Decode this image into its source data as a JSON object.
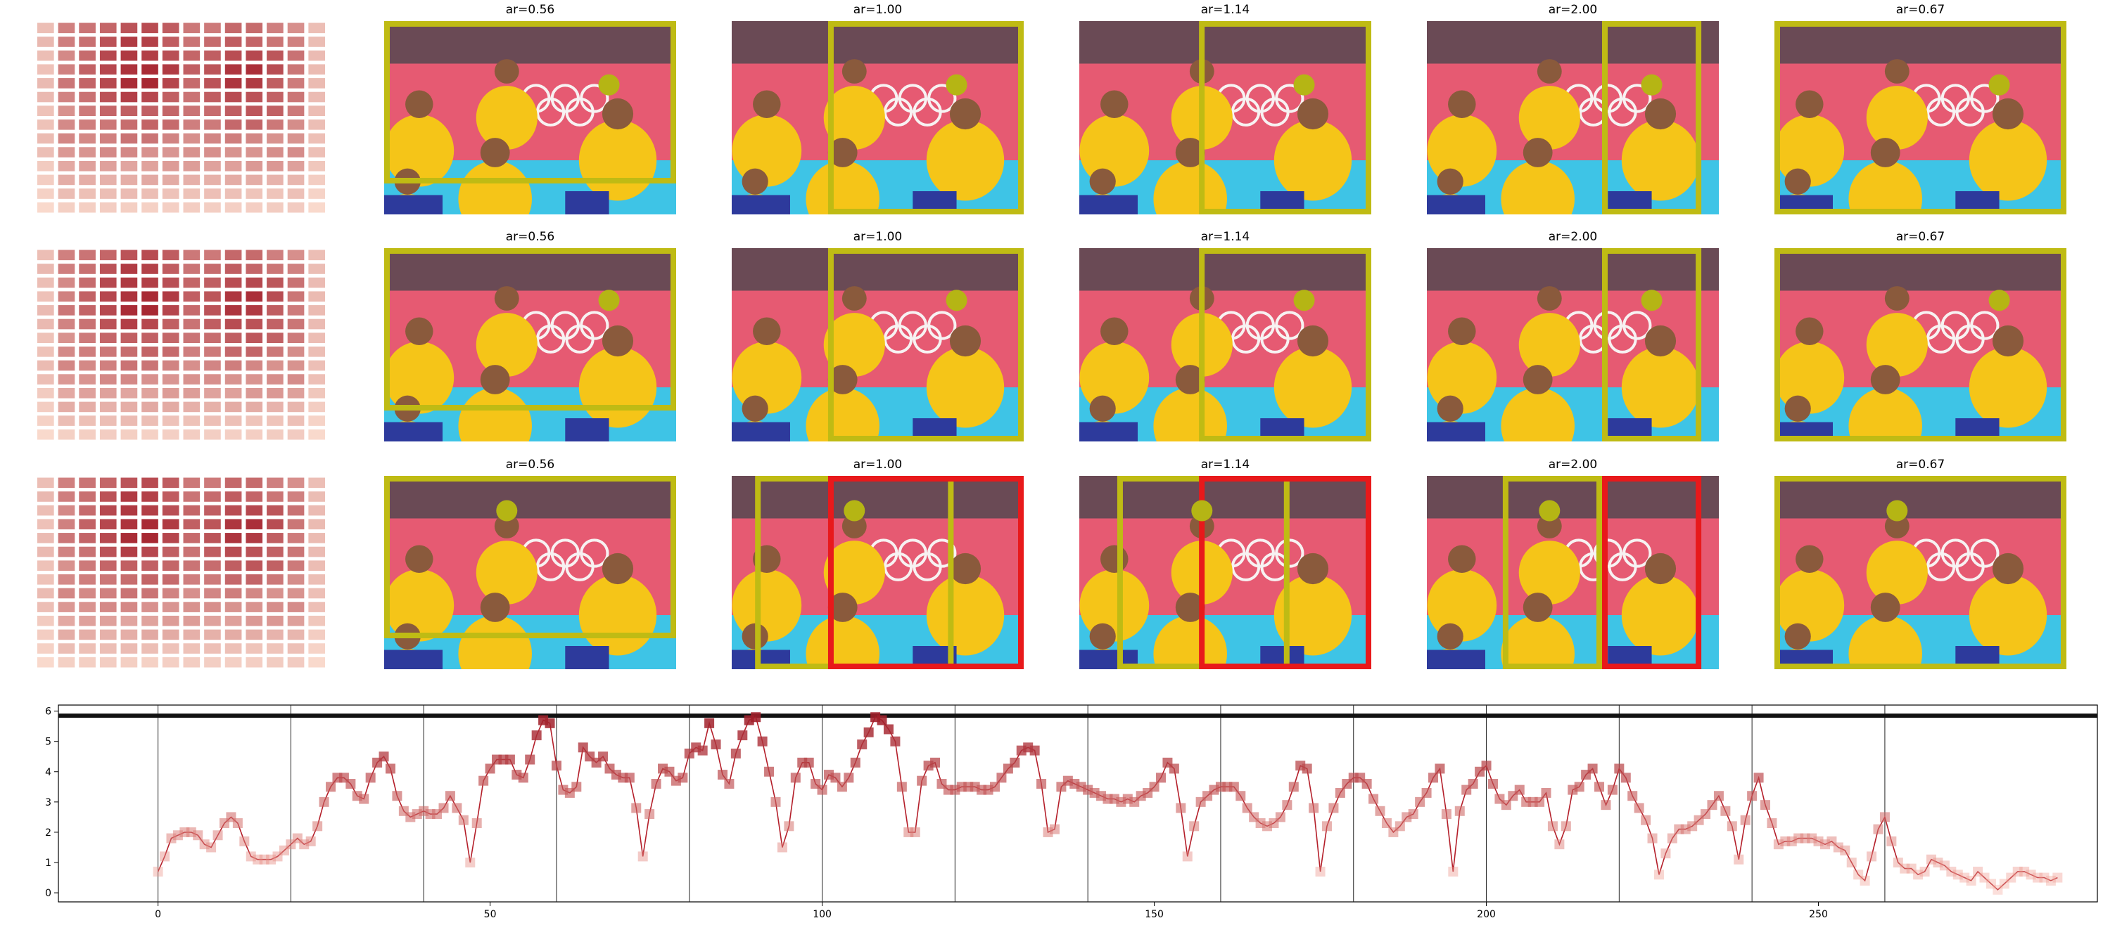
{
  "colors": {
    "heat_low": "#fde3d5",
    "heat_high": "#a31e2a",
    "box_primary": "#bfbb14",
    "box_alert": "#e8191b",
    "marker": "#b5b514",
    "line": "#b41f2a",
    "photo_bg_wall": "#e65a72",
    "photo_floor": "#3ec4e6",
    "jersey": "#f5c518",
    "shorts": "#2d3a9c",
    "skin": "#8a5a3c"
  },
  "panel_rows": [
    {
      "heatmap": "attention-heatmap",
      "panels": [
        {
          "title": "ar=0.56",
          "boxes": [
            {
              "box": [
                0,
                0,
                1,
                0.84
              ],
              "color": "box_primary"
            }
          ],
          "marker": [
            0.77,
            0.33
          ]
        },
        {
          "title": "ar=1.00",
          "boxes": [
            {
              "box": [
                0.33,
                0,
                1,
                1
              ],
              "color": "box_primary"
            }
          ],
          "marker": [
            0.77,
            0.33
          ]
        },
        {
          "title": "ar=1.14",
          "boxes": [
            {
              "box": [
                0.41,
                0,
                1,
                1
              ],
              "color": "box_primary"
            }
          ],
          "marker": [
            0.77,
            0.33
          ]
        },
        {
          "title": "ar=2.00",
          "boxes": [
            {
              "box": [
                0.6,
                0,
                0.94,
                1
              ],
              "color": "box_primary"
            }
          ],
          "marker": [
            0.77,
            0.33
          ]
        },
        {
          "title": "ar=0.67",
          "boxes": [
            {
              "box": [
                0,
                0,
                1,
                1
              ],
              "color": "box_primary"
            }
          ],
          "marker": [
            0.77,
            0.33
          ]
        }
      ]
    },
    {
      "heatmap": "attention-heatmap",
      "panels": [
        {
          "title": "ar=0.56",
          "boxes": [
            {
              "box": [
                0,
                0,
                1,
                0.84
              ],
              "color": "box_primary"
            }
          ],
          "marker": [
            0.77,
            0.27
          ]
        },
        {
          "title": "ar=1.00",
          "boxes": [
            {
              "box": [
                0.33,
                0,
                1,
                1
              ],
              "color": "box_primary"
            }
          ],
          "marker": [
            0.77,
            0.27
          ]
        },
        {
          "title": "ar=1.14",
          "boxes": [
            {
              "box": [
                0.41,
                0,
                1,
                1
              ],
              "color": "box_primary"
            }
          ],
          "marker": [
            0.77,
            0.27
          ]
        },
        {
          "title": "ar=2.00",
          "boxes": [
            {
              "box": [
                0.6,
                0,
                0.94,
                1
              ],
              "color": "box_primary"
            }
          ],
          "marker": [
            0.77,
            0.27
          ]
        },
        {
          "title": "ar=0.67",
          "boxes": [
            {
              "box": [
                0,
                0,
                1,
                1
              ],
              "color": "box_primary"
            }
          ],
          "marker": [
            0.77,
            0.27
          ]
        }
      ]
    },
    {
      "heatmap": "attention-heatmap",
      "panels": [
        {
          "title": "ar=0.56",
          "boxes": [
            {
              "box": [
                0,
                0,
                1,
                0.84
              ],
              "color": "box_primary"
            }
          ],
          "marker": [
            0.42,
            0.18
          ]
        },
        {
          "title": "ar=1.00",
          "boxes": [
            {
              "box": [
                0.08,
                0,
                0.76,
                1
              ],
              "color": "box_primary"
            },
            {
              "box": [
                0.33,
                0,
                1,
                1
              ],
              "color": "box_alert"
            }
          ],
          "marker": [
            0.42,
            0.18
          ]
        },
        {
          "title": "ar=1.14",
          "boxes": [
            {
              "box": [
                0.13,
                0,
                0.72,
                1
              ],
              "color": "box_primary"
            },
            {
              "box": [
                0.41,
                0,
                1,
                1
              ],
              "color": "box_alert"
            }
          ],
          "marker": [
            0.42,
            0.18
          ]
        },
        {
          "title": "ar=2.00",
          "boxes": [
            {
              "box": [
                0.26,
                0,
                0.6,
                1
              ],
              "color": "box_primary"
            },
            {
              "box": [
                0.6,
                0,
                0.94,
                1
              ],
              "color": "box_alert"
            }
          ],
          "marker": [
            0.42,
            0.18
          ]
        },
        {
          "title": "ar=0.67",
          "boxes": [
            {
              "box": [
                0,
                0,
                1,
                1
              ],
              "color": "box_primary"
            }
          ],
          "marker": [
            0.42,
            0.18
          ]
        }
      ]
    }
  ],
  "chart_data": {
    "type": "line",
    "title": "",
    "xlabel": "",
    "ylabel": "",
    "xlim": [
      -15,
      292
    ],
    "ylim": [
      -0.3,
      6.2
    ],
    "x_ticks": [
      0,
      50,
      100,
      150,
      200,
      250
    ],
    "y_ticks": [
      0,
      1,
      2,
      3,
      4,
      5,
      6
    ],
    "hline": 5.85,
    "vlines": [
      0,
      20,
      40,
      60,
      80,
      100,
      120,
      140,
      160,
      180,
      200,
      220,
      240,
      260
    ],
    "grid": false,
    "marker": "square",
    "x_start": 0,
    "values": [
      0.7,
      1.2,
      1.8,
      1.9,
      2.0,
      2.0,
      1.9,
      1.6,
      1.5,
      1.9,
      2.3,
      2.5,
      2.3,
      1.7,
      1.2,
      1.1,
      1.1,
      1.1,
      1.2,
      1.4,
      1.6,
      1.8,
      1.6,
      1.7,
      2.2,
      3.0,
      3.5,
      3.8,
      3.8,
      3.6,
      3.2,
      3.1,
      3.8,
      4.3,
      4.5,
      4.1,
      3.2,
      2.7,
      2.5,
      2.6,
      2.7,
      2.6,
      2.6,
      2.8,
      3.2,
      2.8,
      2.4,
      1.0,
      2.3,
      3.7,
      4.1,
      4.4,
      4.4,
      4.4,
      3.9,
      3.8,
      4.4,
      5.2,
      5.7,
      5.6,
      4.2,
      3.4,
      3.3,
      3.5,
      4.8,
      4.5,
      4.3,
      4.5,
      4.1,
      3.9,
      3.8,
      3.8,
      2.8,
      1.2,
      2.6,
      3.6,
      4.1,
      4.0,
      3.7,
      3.8,
      4.6,
      4.8,
      4.7,
      5.6,
      4.9,
      3.9,
      3.6,
      4.6,
      5.2,
      5.7,
      5.8,
      5.0,
      4.0,
      3.0,
      1.5,
      2.2,
      3.8,
      4.3,
      4.3,
      3.6,
      3.4,
      3.9,
      3.8,
      3.5,
      3.8,
      4.3,
      4.9,
      5.3,
      5.8,
      5.7,
      5.4,
      5.0,
      3.5,
      2.0,
      2.0,
      3.7,
      4.2,
      4.3,
      3.6,
      3.4,
      3.4,
      3.5,
      3.5,
      3.5,
      3.4,
      3.4,
      3.5,
      3.8,
      4.1,
      4.3,
      4.7,
      4.8,
      4.7,
      3.6,
      2.0,
      2.1,
      3.5,
      3.7,
      3.6,
      3.5,
      3.4,
      3.3,
      3.2,
      3.1,
      3.1,
      3.0,
      3.1,
      3.0,
      3.2,
      3.3,
      3.5,
      3.8,
      4.3,
      4.1,
      2.8,
      1.2,
      2.2,
      3.0,
      3.2,
      3.4,
      3.5,
      3.5,
      3.5,
      3.2,
      2.8,
      2.5,
      2.3,
      2.2,
      2.3,
      2.5,
      2.9,
      3.5,
      4.2,
      4.1,
      2.8,
      0.7,
      2.2,
      2.8,
      3.3,
      3.6,
      3.8,
      3.8,
      3.6,
      3.1,
      2.7,
      2.3,
      2.0,
      2.2,
      2.5,
      2.6,
      3.0,
      3.3,
      3.8,
      4.1,
      2.6,
      0.7,
      2.7,
      3.4,
      3.6,
      4.0,
      4.2,
      3.6,
      3.1,
      2.9,
      3.2,
      3.4,
      3.0,
      3.0,
      3.0,
      3.3,
      2.2,
      1.6,
      2.2,
      3.4,
      3.5,
      3.9,
      4.1,
      3.5,
      2.9,
      3.4,
      4.1,
      3.8,
      3.2,
      2.8,
      2.4,
      1.8,
      0.6,
      1.3,
      1.8,
      2.1,
      2.1,
      2.2,
      2.4,
      2.6,
      2.9,
      3.2,
      2.7,
      2.2,
      1.1,
      2.4,
      3.2,
      3.8,
      2.9,
      2.3,
      1.6,
      1.7,
      1.7,
      1.8,
      1.8,
      1.8,
      1.7,
      1.6,
      1.7,
      1.5,
      1.4,
      1.0,
      0.6,
      0.4,
      1.2,
      2.1,
      2.5,
      1.7,
      1.0,
      0.8,
      0.8,
      0.6,
      0.7,
      1.1,
      1.0,
      0.9,
      0.7,
      0.6,
      0.5,
      0.4,
      0.7,
      0.5,
      0.3,
      0.1,
      0.3,
      0.5,
      0.7,
      0.7,
      0.6,
      0.5,
      0.5,
      0.4,
      0.5
    ]
  }
}
